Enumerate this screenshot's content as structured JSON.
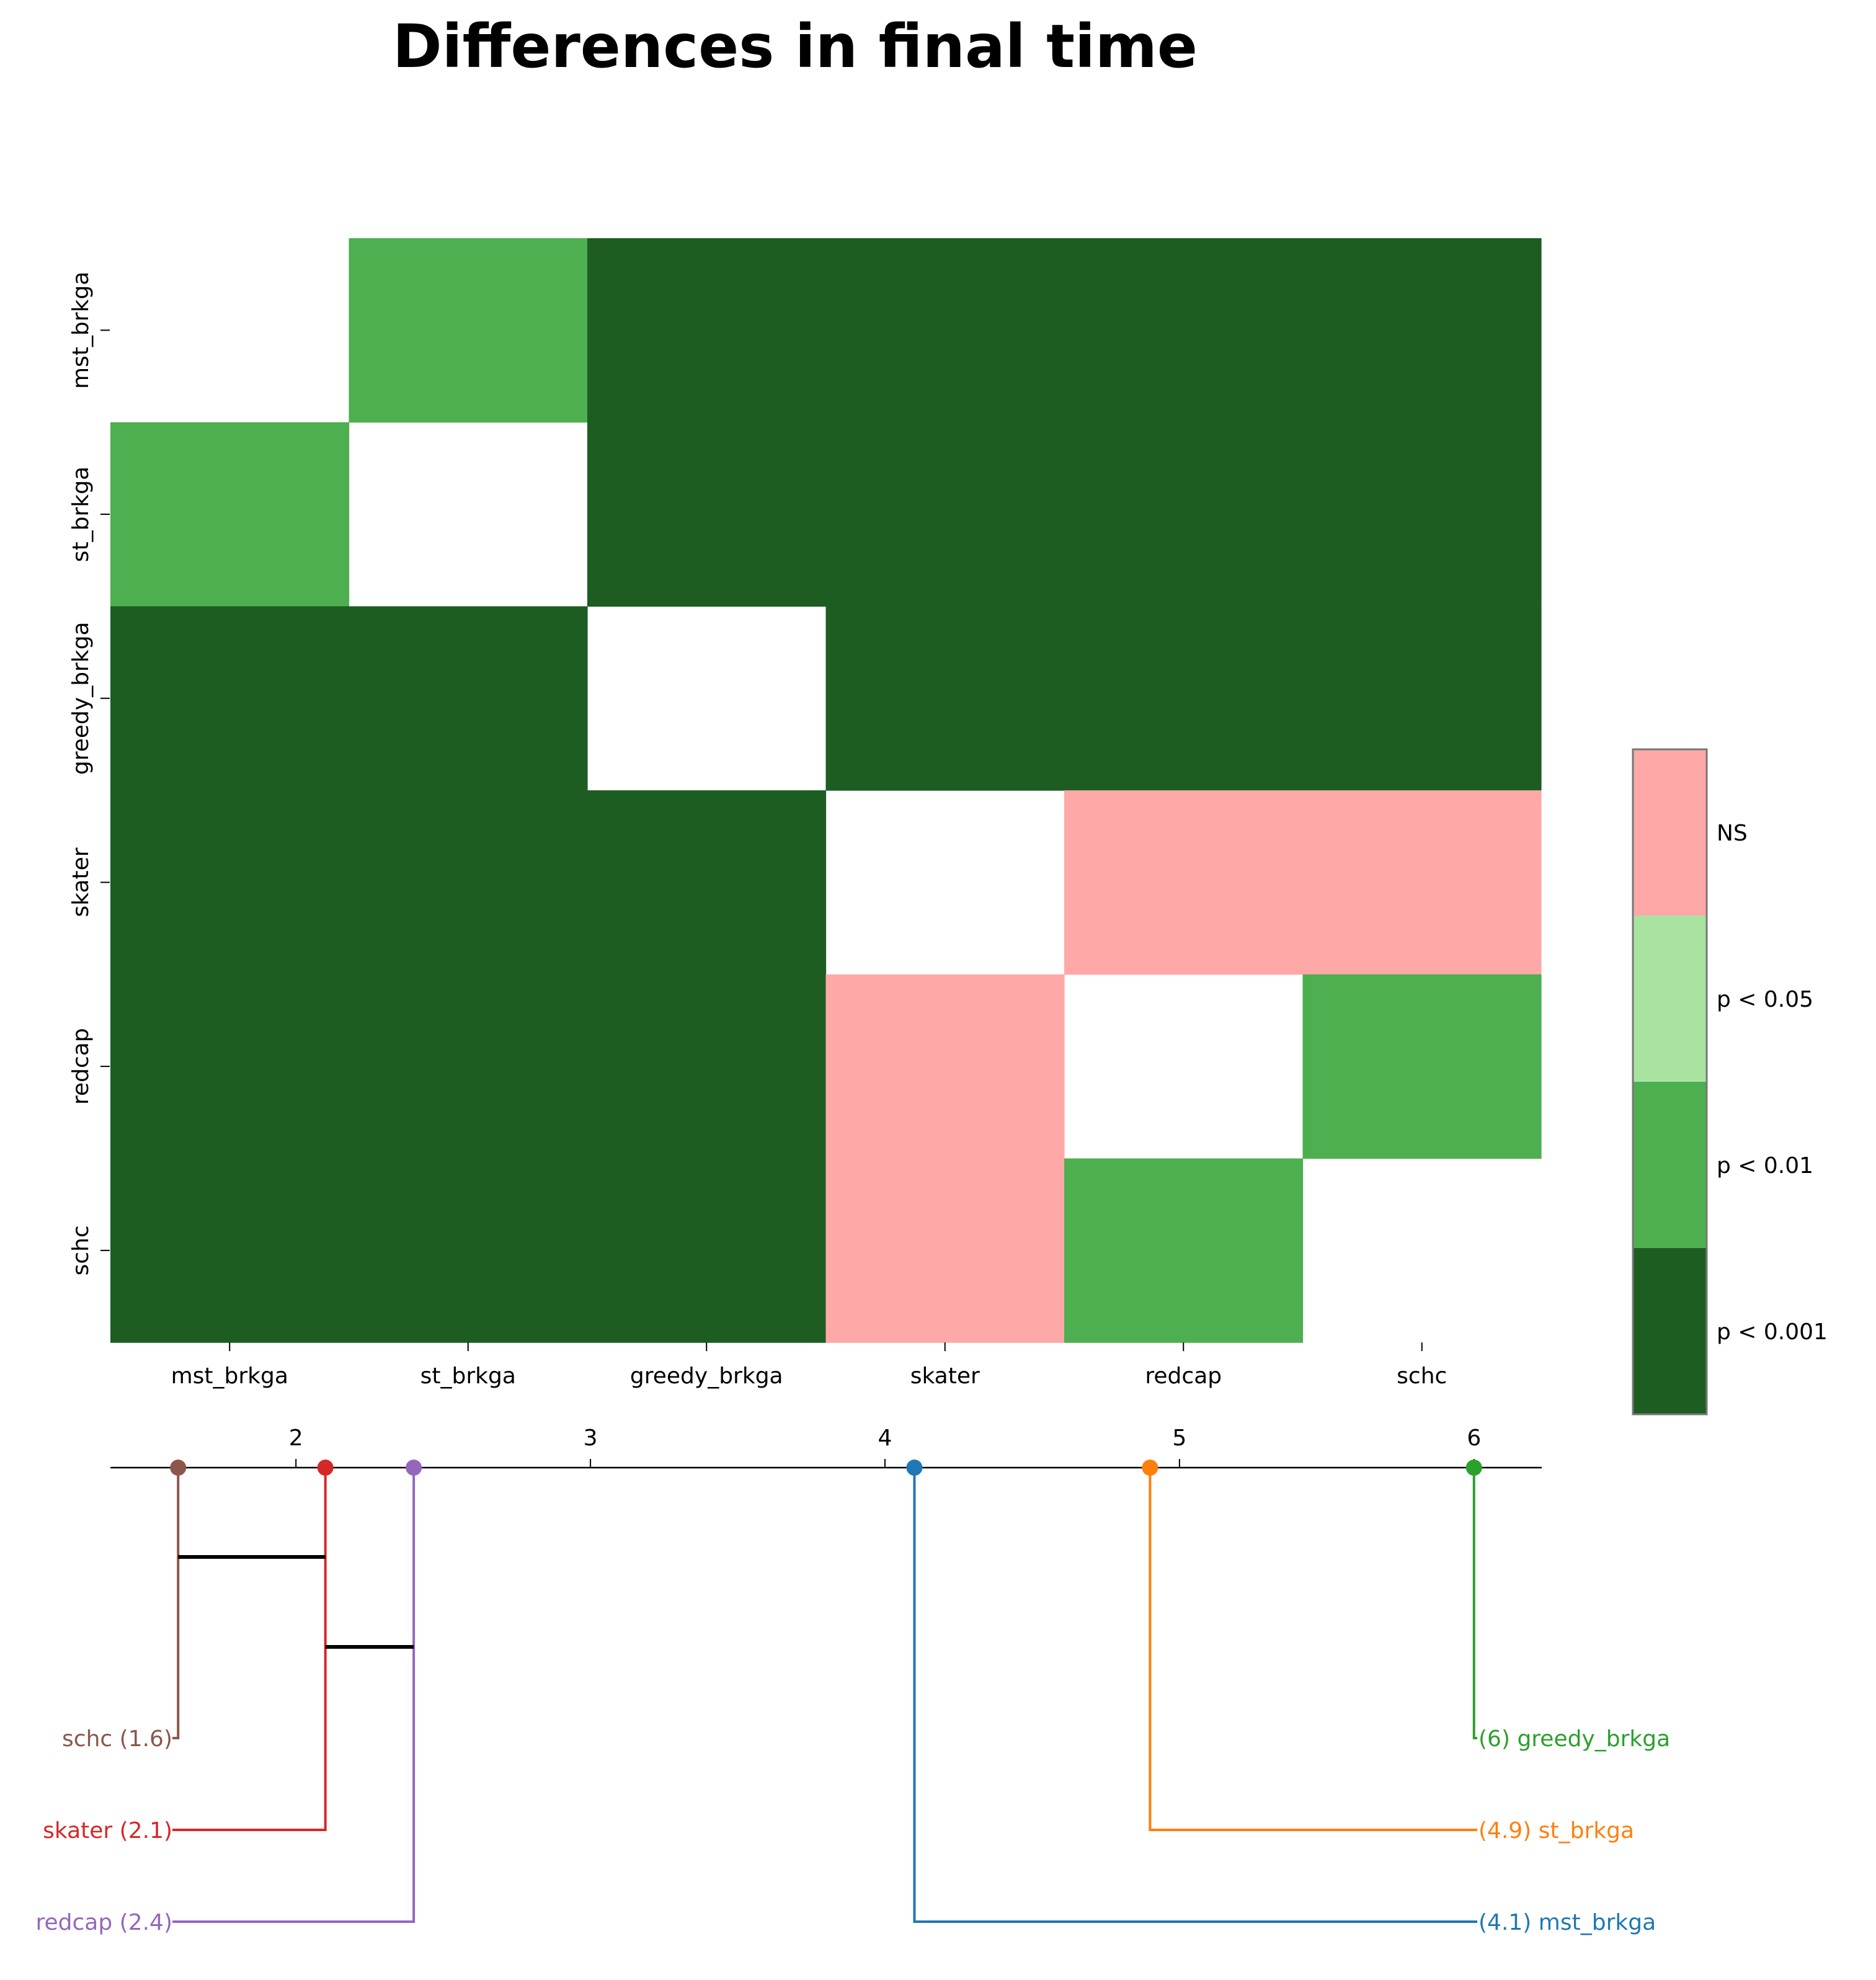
{
  "title": "Differences in final time",
  "chart_data": [
    {
      "type": "heatmap",
      "rows": [
        "mst_brkga",
        "st_brkga",
        "greedy_brkga",
        "skater",
        "redcap",
        "schc"
      ],
      "columns": [
        "mst_brkga",
        "st_brkga",
        "greedy_brkga",
        "skater",
        "redcap",
        "schc"
      ],
      "matrix": [
        [
          null,
          "p < 0.01",
          "p < 0.001",
          "p < 0.001",
          "p < 0.001",
          "p < 0.001"
        ],
        [
          "p < 0.01",
          null,
          "p < 0.001",
          "p < 0.001",
          "p < 0.001",
          "p < 0.001"
        ],
        [
          "p < 0.001",
          "p < 0.001",
          null,
          "p < 0.001",
          "p < 0.001",
          "p < 0.001"
        ],
        [
          "p < 0.001",
          "p < 0.001",
          "p < 0.001",
          null,
          "NS",
          "NS"
        ],
        [
          "p < 0.001",
          "p < 0.001",
          "p < 0.001",
          "NS",
          null,
          "p < 0.01"
        ],
        [
          "p < 0.001",
          "p < 0.001",
          "p < 0.001",
          "NS",
          "p < 0.01",
          null
        ]
      ],
      "legend": [
        {
          "label": "NS",
          "color": "#ffa8a8"
        },
        {
          "label": "p < 0.05",
          "color": "#a8e4a0"
        },
        {
          "label": "p < 0.01",
          "color": "#4daf4f"
        },
        {
          "label": "p < 0.001",
          "color": "#1d5d21"
        }
      ],
      "legend_placement": "right"
    },
    {
      "type": "critical-difference",
      "axis_ticks": [
        2,
        3,
        4,
        5,
        6
      ],
      "xlim": [
        1.37,
        6.23
      ],
      "items": [
        {
          "name": "schc",
          "rank": 1.6,
          "label": "schc (1.6)",
          "side": "left",
          "color": "#8c564b"
        },
        {
          "name": "skater",
          "rank": 2.1,
          "label": "skater (2.1)",
          "side": "left",
          "color": "#d62728"
        },
        {
          "name": "redcap",
          "rank": 2.4,
          "label": "redcap (2.4)",
          "side": "left",
          "color": "#9467bd"
        },
        {
          "name": "greedy_brkga",
          "rank": 6,
          "label": "(6) greedy_brkga",
          "side": "right",
          "color": "#2ca02c"
        },
        {
          "name": "st_brkga",
          "rank": 4.9,
          "label": "(4.9) st_brkga",
          "side": "right",
          "color": "#ff7f0e"
        },
        {
          "name": "mst_brkga",
          "rank": 4.1,
          "label": "(4.1) mst_brkga",
          "side": "right",
          "color": "#1f77b4"
        }
      ],
      "cliques": [
        [
          1.6,
          2.1
        ],
        [
          2.1,
          2.4
        ]
      ]
    }
  ]
}
